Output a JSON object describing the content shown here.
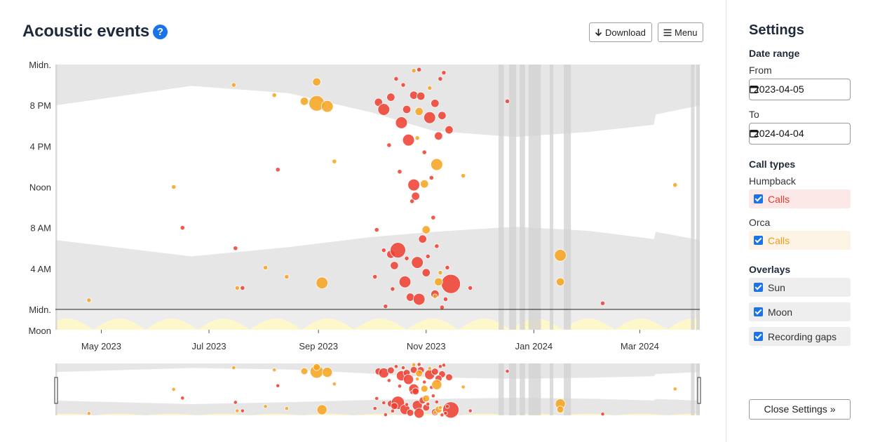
{
  "header": {
    "title": "Acoustic events",
    "help_symbol": "?",
    "download_label": "Download",
    "menu_label": "Menu"
  },
  "settings": {
    "title": "Settings",
    "date_range_heading": "Date range",
    "from_label": "From",
    "from_value": "2023-04-05",
    "to_label": "To",
    "to_value": "2024-04-04",
    "call_types_heading": "Call types",
    "humpback_label": "Humpback",
    "humpback_calls_label": "Calls",
    "orca_label": "Orca",
    "orca_calls_label": "Calls",
    "overlays_heading": "Overlays",
    "overlay_sun": "Sun",
    "overlay_moon": "Moon",
    "overlay_gaps": "Recording gaps",
    "close_label": "Close Settings"
  },
  "colors": {
    "humpback": "#f03c2e",
    "orca": "#f7a21b",
    "humpback_bg": "#fde8e8",
    "orca_bg": "#fef4e6",
    "night": "#e6e6e6",
    "moon": "#fff7cc",
    "gap": "#d0d0d0",
    "accent": "#1a73e8"
  },
  "chart_data": {
    "type": "scatter",
    "x_range": [
      "2023-04-05",
      "2024-04-04"
    ],
    "y_range_hours": [
      0,
      24
    ],
    "x_ticks": [
      {
        "date": "2023-05-01",
        "label": "May 2023"
      },
      {
        "date": "2023-07-01",
        "label": "Jul 2023"
      },
      {
        "date": "2023-09-01",
        "label": "Sep 2023"
      },
      {
        "date": "2023-11-01",
        "label": "Nov 2023"
      },
      {
        "date": "2024-01-01",
        "label": "Jan 2024"
      },
      {
        "date": "2024-03-01",
        "label": "Mar 2024"
      }
    ],
    "y_ticks": [
      {
        "hour": 24,
        "label": "Midn."
      },
      {
        "hour": 20,
        "label": "8 PM"
      },
      {
        "hour": 16,
        "label": "4 PM"
      },
      {
        "hour": 12,
        "label": "Noon"
      },
      {
        "hour": 8,
        "label": "8 AM"
      },
      {
        "hour": 4,
        "label": "4 AM"
      },
      {
        "hour": 0,
        "label": "Midn."
      }
    ],
    "moon_label": "Moon",
    "sunset_hours": [
      {
        "date": "2023-04-05",
        "hour": 20.0
      },
      {
        "date": "2023-06-21",
        "hour": 21.9
      },
      {
        "date": "2023-08-15",
        "hour": 21.2
      },
      {
        "date": "2023-10-01",
        "hour": 19.3
      },
      {
        "date": "2023-11-05",
        "hour": 17.5
      },
      {
        "date": "2023-12-21",
        "hour": 16.9
      },
      {
        "date": "2024-02-01",
        "hour": 17.4
      },
      {
        "date": "2024-03-09",
        "hour": 18.1
      },
      {
        "date": "2024-03-10",
        "hour": 19.1
      },
      {
        "date": "2024-04-04",
        "hour": 20.0
      }
    ],
    "sunrise_hours": [
      {
        "date": "2023-04-05",
        "hour": 6.8
      },
      {
        "date": "2023-06-21",
        "hour": 5.2
      },
      {
        "date": "2023-08-15",
        "hour": 6.1
      },
      {
        "date": "2023-10-01",
        "hour": 7.1
      },
      {
        "date": "2023-11-05",
        "hour": 7.6
      },
      {
        "date": "2023-12-21",
        "hour": 8.1
      },
      {
        "date": "2024-02-01",
        "hour": 7.7
      },
      {
        "date": "2024-03-09",
        "hour": 6.9
      },
      {
        "date": "2024-03-10",
        "hour": 7.6
      },
      {
        "date": "2024-04-04",
        "hour": 6.8
      }
    ],
    "recording_gaps": [
      [
        "2023-04-05",
        "2023-04-06"
      ],
      [
        "2023-12-12",
        "2023-12-15"
      ],
      [
        "2023-12-18",
        "2023-12-22"
      ],
      [
        "2023-12-24",
        "2023-12-27"
      ],
      [
        "2023-12-29",
        "2024-01-05"
      ],
      [
        "2024-01-10",
        "2024-01-12"
      ],
      [
        "2024-01-18",
        "2024-01-22"
      ],
      [
        "2024-03-30",
        "2024-04-01"
      ],
      [
        "2024-04-02",
        "2024-04-04"
      ]
    ],
    "series": [
      {
        "name": "Humpback",
        "points": [
          {
            "date": "2023-06-16",
            "hour": 8.0,
            "size": 1
          },
          {
            "date": "2023-07-16",
            "hour": 6.0,
            "size": 1
          },
          {
            "date": "2023-07-20",
            "hour": 2.1,
            "size": 1
          },
          {
            "date": "2023-08-09",
            "hour": 13.7,
            "size": 1
          },
          {
            "date": "2023-11-26",
            "hour": 2.1,
            "size": 1
          },
          {
            "date": "2023-12-17",
            "hour": 20.4,
            "size": 1
          },
          {
            "date": "2024-02-09",
            "hour": 0.6,
            "size": 1
          },
          {
            "date": "2023-10-05",
            "hour": 20.3,
            "size": 2
          },
          {
            "date": "2023-10-08",
            "hour": 19.6,
            "size": 3
          },
          {
            "date": "2023-10-12",
            "hour": 20.8,
            "size": 2
          },
          {
            "date": "2023-10-15",
            "hour": 22.6,
            "size": 1
          },
          {
            "date": "2023-10-18",
            "hour": 18.3,
            "size": 3
          },
          {
            "date": "2023-10-21",
            "hour": 19.6,
            "size": 2
          },
          {
            "date": "2023-10-22",
            "hour": 16.6,
            "size": 3
          },
          {
            "date": "2023-10-25",
            "hour": 21.0,
            "size": 2
          },
          {
            "date": "2023-10-28",
            "hour": 23.5,
            "size": 1
          },
          {
            "date": "2023-11-03",
            "hour": 18.8,
            "size": 3
          },
          {
            "date": "2023-11-06",
            "hour": 20.2,
            "size": 2
          },
          {
            "date": "2023-11-10",
            "hour": 19.0,
            "size": 2
          },
          {
            "date": "2023-11-14",
            "hour": 17.6,
            "size": 2
          },
          {
            "date": "2023-11-09",
            "hour": 22.6,
            "size": 1
          },
          {
            "date": "2023-11-11",
            "hour": 23.2,
            "size": 1
          },
          {
            "date": "2023-10-17",
            "hour": 13.5,
            "size": 1
          },
          {
            "date": "2023-10-25",
            "hour": 12.2,
            "size": 3
          },
          {
            "date": "2023-10-24",
            "hour": 10.6,
            "size": 1
          },
          {
            "date": "2023-11-05",
            "hour": 9.0,
            "size": 1
          },
          {
            "date": "2023-10-08",
            "hour": 5.8,
            "size": 1
          },
          {
            "date": "2023-10-12",
            "hour": 5.4,
            "size": 2
          },
          {
            "date": "2023-10-16",
            "hour": 5.8,
            "size": 4
          },
          {
            "date": "2023-10-14",
            "hour": 4.3,
            "size": 2
          },
          {
            "date": "2023-10-27",
            "hour": 4.6,
            "size": 3
          },
          {
            "date": "2023-11-01",
            "hour": 3.6,
            "size": 2
          },
          {
            "date": "2023-10-20",
            "hour": 2.7,
            "size": 3
          },
          {
            "date": "2023-10-23",
            "hour": 1.2,
            "size": 2
          },
          {
            "date": "2023-10-28",
            "hour": 1.0,
            "size": 3
          },
          {
            "date": "2023-11-06",
            "hour": 1.5,
            "size": 2
          },
          {
            "date": "2023-11-15",
            "hour": 2.5,
            "size": 5
          },
          {
            "date": "2023-10-03",
            "hour": 3.2,
            "size": 1
          },
          {
            "date": "2023-10-04",
            "hour": 7.8,
            "size": 1
          },
          {
            "date": "2023-10-09",
            "hour": 0.3,
            "size": 1
          },
          {
            "date": "2023-10-30",
            "hour": 6.9,
            "size": 2
          },
          {
            "date": "2023-11-02",
            "hour": 5.2,
            "size": 1
          },
          {
            "date": "2023-11-13",
            "hour": 4.1,
            "size": 1
          },
          {
            "date": "2023-11-10",
            "hour": 0.2,
            "size": 1
          },
          {
            "date": "2023-10-29",
            "hour": 20.9,
            "size": 2
          },
          {
            "date": "2023-10-19",
            "hour": 22.0,
            "size": 1
          },
          {
            "date": "2023-10-11",
            "hour": 16.1,
            "size": 1
          },
          {
            "date": "2023-11-08",
            "hour": 17.0,
            "size": 2
          },
          {
            "date": "2023-10-31",
            "hour": 15.4,
            "size": 1
          },
          {
            "date": "2023-11-04",
            "hour": 12.9,
            "size": 1
          },
          {
            "date": "2023-10-26",
            "hour": 11.1,
            "size": 2
          },
          {
            "date": "2023-11-07",
            "hour": 6.2,
            "size": 1
          },
          {
            "date": "2023-10-13",
            "hour": 2.0,
            "size": 1
          },
          {
            "date": "2023-10-21",
            "hour": 5.0,
            "size": 1
          },
          {
            "date": "2023-11-12",
            "hour": 1.0,
            "size": 1
          }
        ]
      },
      {
        "name": "Orca",
        "points": [
          {
            "date": "2023-04-24",
            "hour": 0.9,
            "size": 1
          },
          {
            "date": "2023-06-11",
            "hour": 12.0,
            "size": 1
          },
          {
            "date": "2023-07-15",
            "hour": 22.0,
            "size": 1
          },
          {
            "date": "2023-07-17",
            "hour": 2.1,
            "size": 1
          },
          {
            "date": "2023-08-02",
            "hour": 4.1,
            "size": 1
          },
          {
            "date": "2023-08-07",
            "hour": 21.0,
            "size": 1
          },
          {
            "date": "2023-08-14",
            "hour": 3.2,
            "size": 1
          },
          {
            "date": "2023-08-24",
            "hour": 20.4,
            "size": 2
          },
          {
            "date": "2023-08-31",
            "hour": 20.2,
            "size": 4
          },
          {
            "date": "2023-08-31",
            "hour": 22.3,
            "size": 2
          },
          {
            "date": "2023-09-06",
            "hour": 19.9,
            "size": 3
          },
          {
            "date": "2023-09-03",
            "hour": 2.6,
            "size": 3
          },
          {
            "date": "2023-09-10",
            "hour": 14.5,
            "size": 1
          },
          {
            "date": "2023-11-07",
            "hour": 14.2,
            "size": 3
          },
          {
            "date": "2023-10-31",
            "hour": 12.3,
            "size": 2
          },
          {
            "date": "2023-11-01",
            "hour": 7.8,
            "size": 2
          },
          {
            "date": "2023-11-08",
            "hour": 2.7,
            "size": 2
          },
          {
            "date": "2023-11-09",
            "hour": 3.6,
            "size": 1
          },
          {
            "date": "2023-10-28",
            "hour": 19.4,
            "size": 2
          },
          {
            "date": "2023-11-03",
            "hour": 21.7,
            "size": 1
          },
          {
            "date": "2023-10-25",
            "hour": 23.4,
            "size": 1
          },
          {
            "date": "2023-11-22",
            "hour": 13.1,
            "size": 1
          },
          {
            "date": "2024-01-16",
            "hour": 5.3,
            "size": 3
          },
          {
            "date": "2024-01-16",
            "hour": 2.7,
            "size": 2
          },
          {
            "date": "2024-03-21",
            "hour": 12.2,
            "size": 1
          },
          {
            "date": "2023-11-06",
            "hour": 1.3,
            "size": 1
          },
          {
            "date": "2023-10-27",
            "hour": 16.8,
            "size": 1
          }
        ]
      }
    ]
  }
}
